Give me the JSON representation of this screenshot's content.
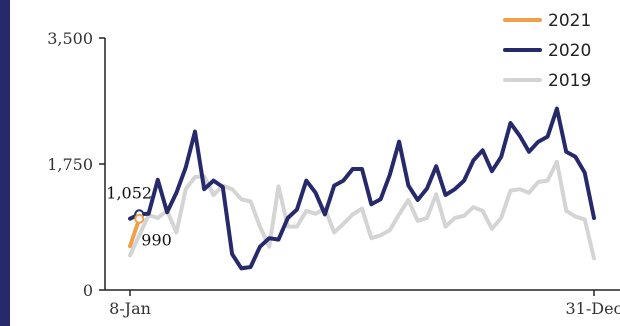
{
  "colors": {
    "accent_bar": "#262a6a",
    "series_2021": "#f0a04b",
    "series_2020": "#262a6a",
    "series_2019": "#d4d4d4",
    "axis": "#222222"
  },
  "chart_data": {
    "type": "line",
    "title": "",
    "xlabel": "",
    "ylabel": "",
    "ylim": [
      0,
      3500
    ],
    "yticks": [
      0,
      1750,
      3500
    ],
    "ytick_labels": [
      "0",
      "1,750",
      "3,500"
    ],
    "x_tick_labels": [
      "8-Jan",
      "31-Dec"
    ],
    "grid": false,
    "legend_position": "top-right",
    "series": [
      {
        "name": "2021",
        "color": "#f0a04b",
        "values": [
          610,
          990
        ]
      },
      {
        "name": "2020",
        "color": "#262a6a",
        "values": [
          990,
          1052,
          1060,
          1530,
          1080,
          1350,
          1700,
          2200,
          1400,
          1520,
          1430,
          500,
          300,
          320,
          600,
          720,
          700,
          1000,
          1120,
          1520,
          1350,
          1050,
          1450,
          1520,
          1680,
          1680,
          1190,
          1260,
          1600,
          2060,
          1450,
          1250,
          1410,
          1720,
          1320,
          1400,
          1520,
          1800,
          1940,
          1650,
          1850,
          2320,
          2140,
          1920,
          2060,
          2130,
          2520,
          1920,
          1850,
          1630,
          1000
        ]
      },
      {
        "name": "2019",
        "color": "#d4d4d4",
        "values": [
          480,
          760,
          1040,
          1000,
          1100,
          800,
          1400,
          1570,
          1580,
          1320,
          1450,
          1400,
          1260,
          1230,
          880,
          600,
          1440,
          880,
          880,
          1100,
          1060,
          1130,
          800,
          920,
          1050,
          1130,
          720,
          760,
          830,
          1050,
          1250,
          960,
          1000,
          1330,
          880,
          1000,
          1030,
          1150,
          1100,
          850,
          1000,
          1380,
          1400,
          1350,
          1500,
          1520,
          1780,
          1100,
          1020,
          980,
          440
        ]
      }
    ],
    "annotations": [
      {
        "text": "1,052",
        "series": "2020",
        "index": 1
      },
      {
        "text": "990",
        "series": "2021",
        "index": 1
      }
    ]
  }
}
